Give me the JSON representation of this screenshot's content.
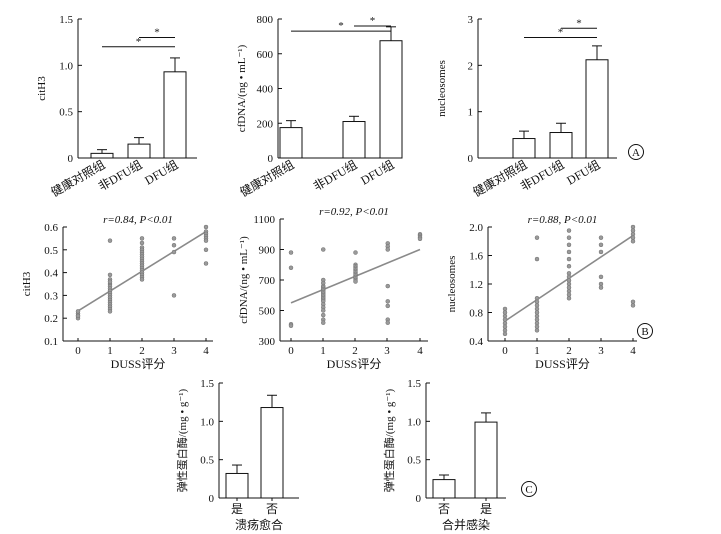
{
  "panel_labels": {
    "A": "A",
    "B": "B",
    "C": "C"
  },
  "chart_data": [
    {
      "id": "A1",
      "type": "bar",
      "panel": "A",
      "ylabel": "citH3",
      "xlabel": "",
      "ylim": [
        0,
        1.5
      ],
      "yticks": [
        "0",
        "0.5",
        "1.0",
        "1.5"
      ],
      "categories": [
        "健康对照组",
        "非DFU组",
        "DFU组"
      ],
      "values": [
        0.05,
        0.15,
        0.93
      ],
      "errors": [
        0.04,
        0.07,
        0.15
      ],
      "significance": [
        {
          "from": 0,
          "to": 2,
          "label": "*",
          "y": 1.2
        },
        {
          "from": 1,
          "to": 2,
          "label": "*",
          "y": 1.3
        }
      ]
    },
    {
      "id": "A2",
      "type": "bar",
      "panel": "A",
      "ylabel": "cfDNA/(ng • mL⁻¹)",
      "xlabel": "",
      "ylim": [
        0,
        800
      ],
      "yticks": [
        "0",
        "200",
        "400",
        "600",
        "800"
      ],
      "categories": [
        "健康对照组",
        "非DFU组",
        "DFU组"
      ],
      "values": [
        175,
        210,
        675
      ],
      "errors": [
        40,
        30,
        80
      ],
      "significance": [
        {
          "from": 0,
          "to": 2,
          "label": "*",
          "y": 730
        },
        {
          "from": 1,
          "to": 2,
          "label": "*",
          "y": 760
        }
      ]
    },
    {
      "id": "A3",
      "type": "bar",
      "panel": "A",
      "ylabel": "nucleosomes",
      "xlabel": "",
      "ylim": [
        0,
        3
      ],
      "yticks": [
        "0",
        "1",
        "2",
        "3"
      ],
      "categories": [
        "健康对照组",
        "非DFU组",
        "DFU组"
      ],
      "values": [
        0.42,
        0.55,
        2.12
      ],
      "errors": [
        0.16,
        0.2,
        0.3
      ],
      "significance": [
        {
          "from": 0,
          "to": 2,
          "label": "*",
          "y": 2.6
        },
        {
          "from": 1,
          "to": 2,
          "label": "*",
          "y": 2.8
        }
      ]
    },
    {
      "id": "B1",
      "type": "scatter",
      "panel": "B",
      "annotation": "r=0.84, P<0.01",
      "ylabel": "citH3",
      "xlabel": "DUSS评分",
      "xlim": [
        -0.5,
        4.5
      ],
      "ylim": [
        0.1,
        0.6
      ],
      "xticks": [
        "0",
        "1",
        "2",
        "3",
        "4"
      ],
      "yticks": [
        "0.1",
        "0.2",
        "0.3",
        "0.4",
        "0.5",
        "0.6"
      ],
      "points": [
        [
          0,
          0.21
        ],
        [
          0,
          0.22
        ],
        [
          0,
          0.2
        ],
        [
          0,
          0.23
        ],
        [
          0,
          0.21
        ],
        [
          1,
          0.54
        ],
        [
          1,
          0.39
        ],
        [
          1,
          0.37
        ],
        [
          1,
          0.35
        ],
        [
          1,
          0.34
        ],
        [
          1,
          0.33
        ],
        [
          1,
          0.32
        ],
        [
          1,
          0.31
        ],
        [
          1,
          0.3
        ],
        [
          1,
          0.29
        ],
        [
          1,
          0.28
        ],
        [
          1,
          0.27
        ],
        [
          1,
          0.26
        ],
        [
          1,
          0.25
        ],
        [
          1,
          0.24
        ],
        [
          1,
          0.23
        ],
        [
          1,
          0.36
        ],
        [
          2,
          0.55
        ],
        [
          2,
          0.53
        ],
        [
          2,
          0.51
        ],
        [
          2,
          0.5
        ],
        [
          2,
          0.49
        ],
        [
          2,
          0.48
        ],
        [
          2,
          0.47
        ],
        [
          2,
          0.46
        ],
        [
          2,
          0.45
        ],
        [
          2,
          0.44
        ],
        [
          2,
          0.43
        ],
        [
          2,
          0.42
        ],
        [
          2,
          0.41
        ],
        [
          2,
          0.4
        ],
        [
          2,
          0.39
        ],
        [
          2,
          0.38
        ],
        [
          2,
          0.37
        ],
        [
          3,
          0.55
        ],
        [
          3,
          0.52
        ],
        [
          3,
          0.49
        ],
        [
          3,
          0.3
        ],
        [
          4,
          0.6
        ],
        [
          4,
          0.58
        ],
        [
          4,
          0.57
        ],
        [
          4,
          0.56
        ],
        [
          4,
          0.55
        ],
        [
          4,
          0.54
        ],
        [
          4,
          0.5
        ],
        [
          4,
          0.44
        ]
      ],
      "fit": [
        [
          0,
          0.232
        ],
        [
          4,
          0.58
        ]
      ]
    },
    {
      "id": "B2",
      "type": "scatter",
      "panel": "B",
      "annotation": "r=0.92, P<0.01",
      "ylabel": "cfDNA/(ng • mL⁻¹)",
      "xlabel": "DUSS评分",
      "xlim": [
        -0.5,
        4.5
      ],
      "ylim": [
        300,
        1100
      ],
      "xticks": [
        "0",
        "1",
        "2",
        "3",
        "4"
      ],
      "yticks": [
        "300",
        "500",
        "700",
        "900",
        "1100"
      ],
      "points": [
        [
          0,
          880
        ],
        [
          0,
          780
        ],
        [
          0,
          410
        ],
        [
          0,
          400
        ],
        [
          1,
          900
        ],
        [
          1,
          700
        ],
        [
          1,
          680
        ],
        [
          1,
          660
        ],
        [
          1,
          650
        ],
        [
          1,
          640
        ],
        [
          1,
          630
        ],
        [
          1,
          620
        ],
        [
          1,
          610
        ],
        [
          1,
          600
        ],
        [
          1,
          590
        ],
        [
          1,
          580
        ],
        [
          1,
          570
        ],
        [
          1,
          560
        ],
        [
          1,
          540
        ],
        [
          1,
          520
        ],
        [
          1,
          500
        ],
        [
          1,
          470
        ],
        [
          1,
          440
        ],
        [
          1,
          420
        ],
        [
          2,
          880
        ],
        [
          2,
          800
        ],
        [
          2,
          790
        ],
        [
          2,
          780
        ],
        [
          2,
          770
        ],
        [
          2,
          760
        ],
        [
          2,
          750
        ],
        [
          2,
          740
        ],
        [
          2,
          730
        ],
        [
          2,
          720
        ],
        [
          2,
          710
        ],
        [
          2,
          700
        ],
        [
          2,
          690
        ],
        [
          3,
          940
        ],
        [
          3,
          920
        ],
        [
          3,
          900
        ],
        [
          3,
          660
        ],
        [
          3,
          560
        ],
        [
          3,
          530
        ],
        [
          3,
          440
        ],
        [
          3,
          420
        ],
        [
          4,
          1000
        ],
        [
          4,
          990
        ],
        [
          4,
          980
        ],
        [
          4,
          970
        ]
      ],
      "fit": [
        [
          0,
          550
        ],
        [
          4,
          900
        ]
      ]
    },
    {
      "id": "B3",
      "type": "scatter",
      "panel": "B",
      "annotation": "r=0.88, P<0.01",
      "ylabel": "nucleosomes",
      "xlabel": "DUSS评分",
      "xlim": [
        -0.3,
        4.3
      ],
      "ylim": [
        0.4,
        2.0
      ],
      "xticks": [
        "0",
        "1",
        "2",
        "3",
        "4"
      ],
      "yticks": [
        "0.4",
        "0.8",
        "1.2",
        "1.6",
        "2.0"
      ],
      "points": [
        [
          0,
          0.85
        ],
        [
          0,
          0.8
        ],
        [
          0,
          0.75
        ],
        [
          0,
          0.7
        ],
        [
          0,
          0.65
        ],
        [
          0,
          0.6
        ],
        [
          0,
          0.55
        ],
        [
          0,
          0.5
        ],
        [
          1,
          1.85
        ],
        [
          1,
          1.55
        ],
        [
          1,
          1.0
        ],
        [
          1,
          0.95
        ],
        [
          1,
          0.9
        ],
        [
          1,
          0.85
        ],
        [
          1,
          0.8
        ],
        [
          1,
          0.75
        ],
        [
          1,
          0.7
        ],
        [
          1,
          0.65
        ],
        [
          1,
          0.6
        ],
        [
          1,
          0.55
        ],
        [
          2,
          1.95
        ],
        [
          2,
          1.85
        ],
        [
          2,
          1.75
        ],
        [
          2,
          1.65
        ],
        [
          2,
          1.55
        ],
        [
          2,
          1.45
        ],
        [
          2,
          1.35
        ],
        [
          2,
          1.3
        ],
        [
          2,
          1.25
        ],
        [
          2,
          1.2
        ],
        [
          2,
          1.15
        ],
        [
          2,
          1.1
        ],
        [
          2,
          1.05
        ],
        [
          2,
          1.0
        ],
        [
          3,
          1.85
        ],
        [
          3,
          1.75
        ],
        [
          3,
          1.65
        ],
        [
          3,
          1.3
        ],
        [
          3,
          1.2
        ],
        [
          3,
          1.15
        ],
        [
          4,
          2.0
        ],
        [
          4,
          1.95
        ],
        [
          4,
          1.9
        ],
        [
          4,
          1.85
        ],
        [
          4,
          1.8
        ],
        [
          4,
          0.95
        ],
        [
          4,
          0.9
        ]
      ],
      "fit": [
        [
          0,
          0.68
        ],
        [
          4,
          1.88
        ]
      ]
    },
    {
      "id": "C1",
      "type": "bar",
      "panel": "C",
      "ylabel": "弹性蛋白酶/(mg • g⁻¹)",
      "xlabel": "溃疡愈合",
      "ylim": [
        0,
        1.5
      ],
      "yticks": [
        "0",
        "0.5",
        "1.0",
        "1.5"
      ],
      "categories": [
        "是",
        "否"
      ],
      "values": [
        0.32,
        1.18
      ],
      "errors": [
        0.11,
        0.16
      ],
      "significance": []
    },
    {
      "id": "C2",
      "type": "bar",
      "panel": "C",
      "ylabel": "弹性蛋白酶/(mg • g⁻¹)",
      "xlabel": "合并感染",
      "ylim": [
        0,
        1.5
      ],
      "yticks": [
        "0",
        "0.5",
        "1.0",
        "1.5"
      ],
      "categories": [
        "否",
        "是"
      ],
      "values": [
        0.24,
        0.99
      ],
      "errors": [
        0.06,
        0.12
      ],
      "significance": []
    }
  ]
}
